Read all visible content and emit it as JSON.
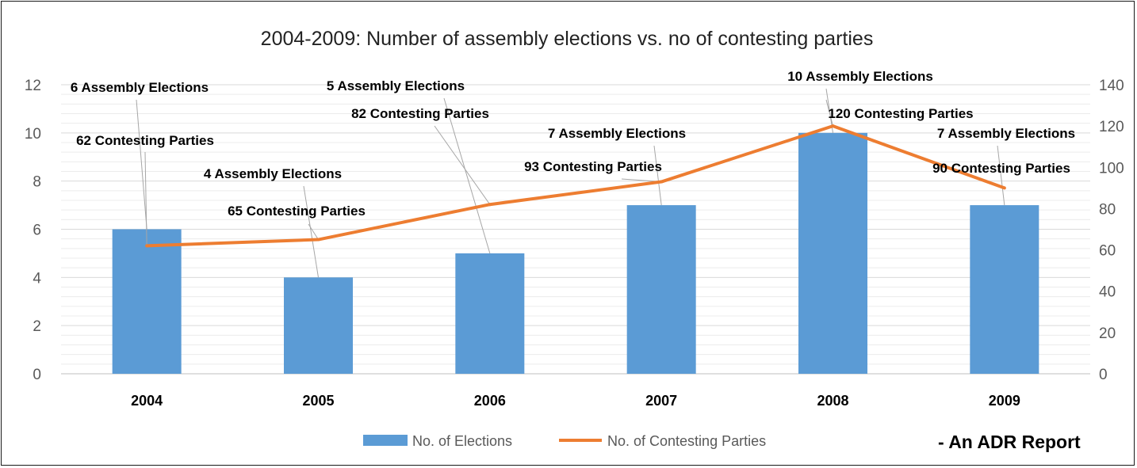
{
  "chart_data": {
    "type": "bar",
    "title": "2004-2009: Number of assembly elections vs. no of contesting parties",
    "categories": [
      "2004",
      "2005",
      "2006",
      "2007",
      "2008",
      "2009"
    ],
    "series": [
      {
        "name": "No. of Elections",
        "type": "bar",
        "axis": "left",
        "color": "#5B9BD5",
        "values": [
          6,
          4,
          5,
          7,
          10,
          7
        ],
        "labels": [
          "6 Assembly Elections",
          "4 Assembly Elections",
          "5 Assembly Elections",
          "7 Assembly Elections",
          "10 Assembly Elections",
          "7 Assembly Elections"
        ]
      },
      {
        "name": "No. of Contesting Parties",
        "type": "line",
        "axis": "right",
        "color": "#ED7D31",
        "values": [
          62,
          65,
          82,
          93,
          120,
          90
        ],
        "labels": [
          "62 Contesting Parties",
          "65 Contesting Parties",
          "82 Contesting Parties",
          "93 Contesting Parties",
          "120 Contesting Parties",
          "90 Contesting Parties"
        ]
      }
    ],
    "y_left": {
      "ylim": [
        0,
        12
      ],
      "ticks": [
        "0",
        "2",
        "4",
        "6",
        "8",
        "10",
        "12"
      ]
    },
    "y_right": {
      "ylim": [
        0,
        140
      ],
      "ticks": [
        "0",
        "20",
        "40",
        "60",
        "80",
        "100",
        "120",
        "140"
      ]
    },
    "grid": true,
    "legend": "bottom-center",
    "source_note": "- An ADR Report"
  }
}
